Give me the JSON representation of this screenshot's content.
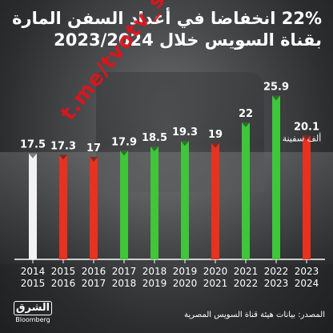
{
  "title_line1": "22% انخفاضا في أعداد السفن المارة",
  "title_line2": "بقناة السويس خلال 2023/2024",
  "watermark": "t.me/tvotv_sk",
  "colors": {
    "white": "#f2f2f2",
    "red": "#e8311f",
    "green": "#3fc63a",
    "axis": "#ffffff"
  },
  "chart_data": {
    "type": "bar",
    "categories": [
      [
        "2014",
        "2015"
      ],
      [
        "2015",
        "2016"
      ],
      [
        "2016",
        "2017"
      ],
      [
        "2017",
        "2018"
      ],
      [
        "2018",
        "2019"
      ],
      [
        "2019",
        "2020"
      ],
      [
        "2020",
        "2021"
      ],
      [
        "2021",
        "2022"
      ],
      [
        "2022",
        "2023"
      ],
      [
        "2023",
        "2024"
      ]
    ],
    "values": [
      17.5,
      17.3,
      17,
      17.9,
      18.5,
      19.3,
      19,
      22,
      25.9,
      20.1
    ],
    "value_labels": [
      "17.5",
      "17.3",
      "17",
      "17.9",
      "18.5",
      "19.3",
      "19",
      "22",
      "25.9",
      "20.1"
    ],
    "bar_colors": [
      "white",
      "red",
      "red",
      "green",
      "green",
      "green",
      "red",
      "green",
      "green",
      "red"
    ],
    "unit_label": "ألف سفينة",
    "title": "22% انخفاضا في أعداد السفن المارة بقناة السويس خلال 2023/2024",
    "xlabel": "",
    "ylabel": "",
    "ylim": [
      0,
      27
    ],
    "grid": false,
    "legend": "none"
  },
  "footer": {
    "logo_main": "الشرق",
    "logo_sub": "Bloomberg",
    "source": "المصدر: بيانات هيئة قناة السويس المصرية"
  }
}
